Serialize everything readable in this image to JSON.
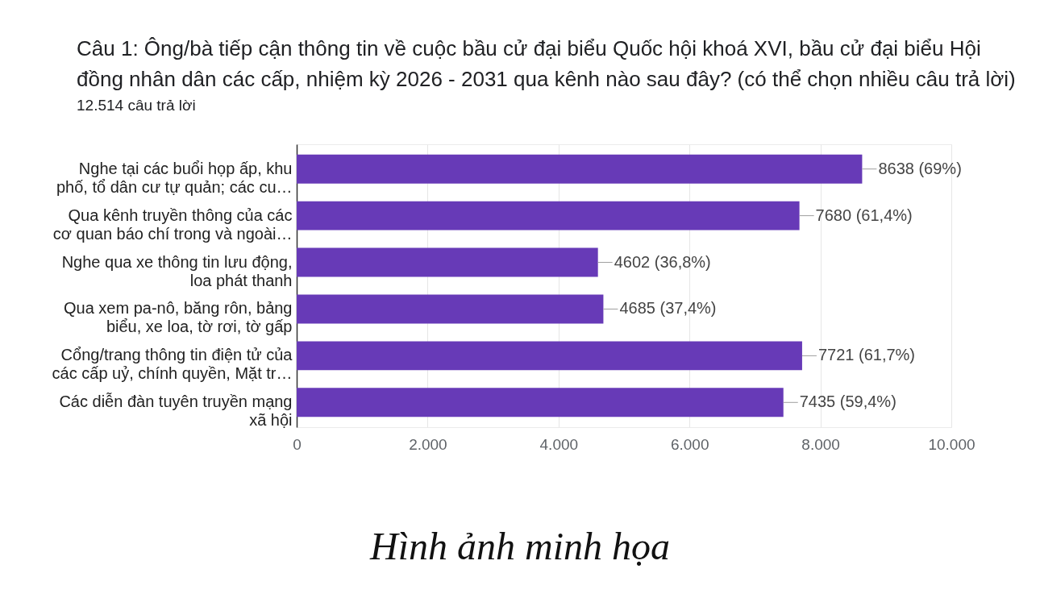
{
  "chart_data": {
    "type": "bar",
    "orientation": "horizontal",
    "title": "Câu 1: Ông/bà tiếp cận thông tin về cuộc bầu cử đại biểu Quốc hội khoá XVI, bầu cử đại biểu Hội đồng nhân dân các cấp, nhiệm kỳ 2026 - 2031 qua kênh nào sau đây? (có thể chọn nhiều câu trả lời)",
    "subtitle": "12.514 câu trả lời",
    "annotations": [
      "Hình ảnh minh họa"
    ],
    "categories": [
      "Nghe tại các buổi họp ấp, khu phố, tổ dân cư tự quản; các cu…",
      "Qua kênh truyền thông của các cơ quan báo chí trong và ngoài…",
      "Nghe qua xe thông tin lưu động, loa phát thanh",
      "Qua xem pa-nô, băng rôn, bảng biểu, xe loa, tờ rơi, tờ gấp",
      "Cổng/trang thông tin điện tử của các cấp uỷ, chính quyền, Mặt tr…",
      "Các diễn đàn tuyên truyền mạng xã hội"
    ],
    "values": [
      8638,
      7680,
      4602,
      4685,
      7721,
      7435
    ],
    "value_labels": [
      "8638 (69%)",
      "7680 (61,4%)",
      "4602 (36,8%)",
      "4685 (37,4%)",
      "7721 (61,7%)",
      "7435 (59,4%)"
    ],
    "color": "#673ab7",
    "xlim": [
      0,
      10000
    ],
    "xticks": [
      0,
      {
        "value": 2000,
        "label": "2.000"
      },
      {
        "value": 4000,
        "label": "4.000"
      },
      {
        "value": 6000,
        "label": "6.000"
      },
      {
        "value": 8000,
        "label": "8.000"
      },
      {
        "value": 10000,
        "label": "10.000"
      }
    ],
    "grid": "x"
  }
}
